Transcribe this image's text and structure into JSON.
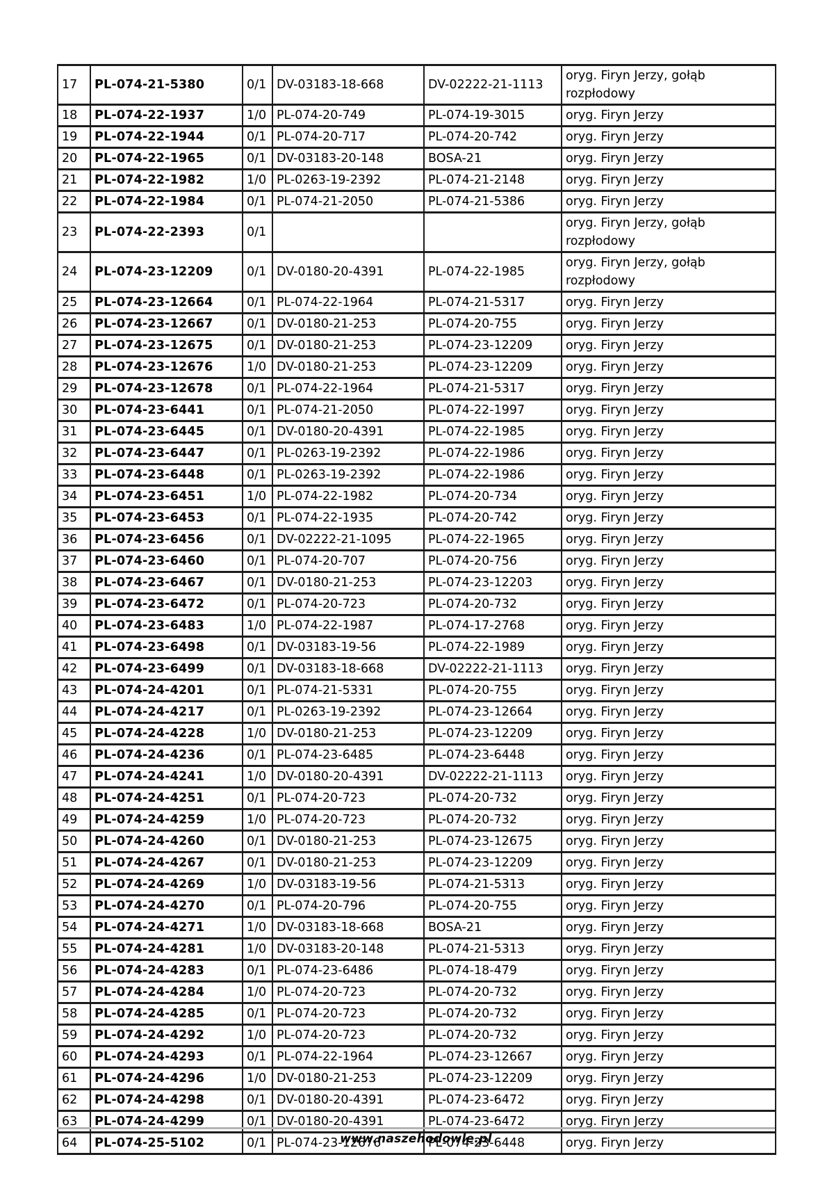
{
  "colors": {
    "text": "#000000",
    "table_border": "#1c1c1c",
    "footer_rule": "#b4b4b4",
    "background": "#ffffff"
  },
  "footer": {
    "website": "www.naszehodowle.pl"
  },
  "table": {
    "rows": [
      {
        "no": "17",
        "ring": "PL-074-21-5380",
        "sex": "0/1",
        "father": "DV-03183-18-668",
        "mother": "DV-02222-21-1113",
        "remarks": "oryg. Firyn Jerzy, gołąb rozpłodowy"
      },
      {
        "no": "18",
        "ring": "PL-074-22-1937",
        "sex": "1/0",
        "father": "PL-074-20-749",
        "mother": "PL-074-19-3015",
        "remarks": "oryg. Firyn Jerzy"
      },
      {
        "no": "19",
        "ring": "PL-074-22-1944",
        "sex": "0/1",
        "father": "PL-074-20-717",
        "mother": "PL-074-20-742",
        "remarks": "oryg. Firyn Jerzy"
      },
      {
        "no": "20",
        "ring": "PL-074-22-1965",
        "sex": "0/1",
        "father": "DV-03183-20-148",
        "mother": "BOSA-21",
        "remarks": "oryg. Firyn Jerzy"
      },
      {
        "no": "21",
        "ring": "PL-074-22-1982",
        "sex": "1/0",
        "father": "PL-0263-19-2392",
        "mother": "PL-074-21-2148",
        "remarks": "oryg. Firyn Jerzy"
      },
      {
        "no": "22",
        "ring": "PL-074-22-1984",
        "sex": "0/1",
        "father": "PL-074-21-2050",
        "mother": "PL-074-21-5386",
        "remarks": "oryg. Firyn Jerzy"
      },
      {
        "no": "23",
        "ring": "PL-074-22-2393",
        "sex": "0/1",
        "father": "",
        "mother": "",
        "remarks": "oryg. Firyn Jerzy, gołąb rozpłodowy"
      },
      {
        "no": "24",
        "ring": "PL-074-23-12209",
        "sex": "0/1",
        "father": "DV-0180-20-4391",
        "mother": "PL-074-22-1985",
        "remarks": "oryg. Firyn Jerzy, gołąb rozpłodowy"
      },
      {
        "no": "25",
        "ring": "PL-074-23-12664",
        "sex": "0/1",
        "father": "PL-074-22-1964",
        "mother": "PL-074-21-5317",
        "remarks": "oryg. Firyn Jerzy"
      },
      {
        "no": "26",
        "ring": "PL-074-23-12667",
        "sex": "0/1",
        "father": "DV-0180-21-253",
        "mother": "PL-074-20-755",
        "remarks": "oryg. Firyn Jerzy"
      },
      {
        "no": "27",
        "ring": "PL-074-23-12675",
        "sex": "0/1",
        "father": "DV-0180-21-253",
        "mother": "PL-074-23-12209",
        "remarks": "oryg. Firyn Jerzy"
      },
      {
        "no": "28",
        "ring": "PL-074-23-12676",
        "sex": "1/0",
        "father": "DV-0180-21-253",
        "mother": "PL-074-23-12209",
        "remarks": "oryg. Firyn Jerzy"
      },
      {
        "no": "29",
        "ring": "PL-074-23-12678",
        "sex": "0/1",
        "father": "PL-074-22-1964",
        "mother": "PL-074-21-5317",
        "remarks": "oryg. Firyn Jerzy"
      },
      {
        "no": "30",
        "ring": "PL-074-23-6441",
        "sex": "0/1",
        "father": "PL-074-21-2050",
        "mother": "PL-074-22-1997",
        "remarks": "oryg. Firyn Jerzy"
      },
      {
        "no": "31",
        "ring": "PL-074-23-6445",
        "sex": "0/1",
        "father": "DV-0180-20-4391",
        "mother": "PL-074-22-1985",
        "remarks": "oryg. Firyn Jerzy"
      },
      {
        "no": "32",
        "ring": "PL-074-23-6447",
        "sex": "0/1",
        "father": "PL-0263-19-2392",
        "mother": "PL-074-22-1986",
        "remarks": "oryg. Firyn Jerzy"
      },
      {
        "no": "33",
        "ring": "PL-074-23-6448",
        "sex": "0/1",
        "father": "PL-0263-19-2392",
        "mother": "PL-074-22-1986",
        "remarks": "oryg. Firyn Jerzy"
      },
      {
        "no": "34",
        "ring": "PL-074-23-6451",
        "sex": "1/0",
        "father": "PL-074-22-1982",
        "mother": "PL-074-20-734",
        "remarks": "oryg. Firyn Jerzy"
      },
      {
        "no": "35",
        "ring": "PL-074-23-6453",
        "sex": "0/1",
        "father": "PL-074-22-1935",
        "mother": "PL-074-20-742",
        "remarks": "oryg. Firyn Jerzy"
      },
      {
        "no": "36",
        "ring": "PL-074-23-6456",
        "sex": "0/1",
        "father": "DV-02222-21-1095",
        "mother": "PL-074-22-1965",
        "remarks": "oryg. Firyn Jerzy"
      },
      {
        "no": "37",
        "ring": "PL-074-23-6460",
        "sex": "0/1",
        "father": "PL-074-20-707",
        "mother": "PL-074-20-756",
        "remarks": "oryg. Firyn Jerzy"
      },
      {
        "no": "38",
        "ring": "PL-074-23-6467",
        "sex": "0/1",
        "father": "DV-0180-21-253",
        "mother": "PL-074-23-12203",
        "remarks": "oryg. Firyn Jerzy"
      },
      {
        "no": "39",
        "ring": "PL-074-23-6472",
        "sex": "0/1",
        "father": "PL-074-20-723",
        "mother": "PL-074-20-732",
        "remarks": "oryg. Firyn Jerzy"
      },
      {
        "no": "40",
        "ring": "PL-074-23-6483",
        "sex": "1/0",
        "father": "PL-074-22-1987",
        "mother": "PL-074-17-2768",
        "remarks": "oryg. Firyn Jerzy"
      },
      {
        "no": "41",
        "ring": "PL-074-23-6498",
        "sex": "0/1",
        "father": "DV-03183-19-56",
        "mother": "PL-074-22-1989",
        "remarks": "oryg. Firyn Jerzy"
      },
      {
        "no": "42",
        "ring": "PL-074-23-6499",
        "sex": "0/1",
        "father": "DV-03183-18-668",
        "mother": "DV-02222-21-1113",
        "remarks": "oryg. Firyn Jerzy"
      },
      {
        "no": "43",
        "ring": "PL-074-24-4201",
        "sex": "0/1",
        "father": "PL-074-21-5331",
        "mother": "PL-074-20-755",
        "remarks": "oryg. Firyn Jerzy"
      },
      {
        "no": "44",
        "ring": "PL-074-24-4217",
        "sex": "0/1",
        "father": "PL-0263-19-2392",
        "mother": "PL-074-23-12664",
        "remarks": "oryg. Firyn Jerzy"
      },
      {
        "no": "45",
        "ring": "PL-074-24-4228",
        "sex": "1/0",
        "father": "DV-0180-21-253",
        "mother": "PL-074-23-12209",
        "remarks": "oryg. Firyn Jerzy"
      },
      {
        "no": "46",
        "ring": "PL-074-24-4236",
        "sex": "0/1",
        "father": "PL-074-23-6485",
        "mother": "PL-074-23-6448",
        "remarks": "oryg. Firyn Jerzy"
      },
      {
        "no": "47",
        "ring": "PL-074-24-4241",
        "sex": "1/0",
        "father": "DV-0180-20-4391",
        "mother": "DV-02222-21-1113",
        "remarks": "oryg. Firyn Jerzy"
      },
      {
        "no": "48",
        "ring": "PL-074-24-4251",
        "sex": "0/1",
        "father": "PL-074-20-723",
        "mother": "PL-074-20-732",
        "remarks": "oryg. Firyn Jerzy"
      },
      {
        "no": "49",
        "ring": "PL-074-24-4259",
        "sex": "1/0",
        "father": "PL-074-20-723",
        "mother": "PL-074-20-732",
        "remarks": "oryg. Firyn Jerzy"
      },
      {
        "no": "50",
        "ring": "PL-074-24-4260",
        "sex": "0/1",
        "father": "DV-0180-21-253",
        "mother": "PL-074-23-12675",
        "remarks": "oryg. Firyn Jerzy"
      },
      {
        "no": "51",
        "ring": "PL-074-24-4267",
        "sex": "0/1",
        "father": "DV-0180-21-253",
        "mother": "PL-074-23-12209",
        "remarks": "oryg. Firyn Jerzy"
      },
      {
        "no": "52",
        "ring": "PL-074-24-4269",
        "sex": "1/0",
        "father": "DV-03183-19-56",
        "mother": "PL-074-21-5313",
        "remarks": "oryg. Firyn Jerzy"
      },
      {
        "no": "53",
        "ring": "PL-074-24-4270",
        "sex": "0/1",
        "father": "PL-074-20-796",
        "mother": "PL-074-20-755",
        "remarks": "oryg. Firyn Jerzy"
      },
      {
        "no": "54",
        "ring": "PL-074-24-4271",
        "sex": "1/0",
        "father": "DV-03183-18-668",
        "mother": "BOSA-21",
        "remarks": "oryg. Firyn Jerzy"
      },
      {
        "no": "55",
        "ring": "PL-074-24-4281",
        "sex": "1/0",
        "father": "DV-03183-20-148",
        "mother": "PL-074-21-5313",
        "remarks": "oryg. Firyn Jerzy"
      },
      {
        "no": "56",
        "ring": "PL-074-24-4283",
        "sex": "0/1",
        "father": "PL-074-23-6486",
        "mother": "PL-074-18-479",
        "remarks": "oryg. Firyn Jerzy"
      },
      {
        "no": "57",
        "ring": "PL-074-24-4284",
        "sex": "1/0",
        "father": "PL-074-20-723",
        "mother": "PL-074-20-732",
        "remarks": "oryg. Firyn Jerzy"
      },
      {
        "no": "58",
        "ring": "PL-074-24-4285",
        "sex": "0/1",
        "father": "PL-074-20-723",
        "mother": "PL-074-20-732",
        "remarks": "oryg. Firyn Jerzy"
      },
      {
        "no": "59",
        "ring": "PL-074-24-4292",
        "sex": "1/0",
        "father": "PL-074-20-723",
        "mother": "PL-074-20-732",
        "remarks": "oryg. Firyn Jerzy"
      },
      {
        "no": "60",
        "ring": "PL-074-24-4293",
        "sex": "0/1",
        "father": "PL-074-22-1964",
        "mother": "PL-074-23-12667",
        "remarks": "oryg. Firyn Jerzy"
      },
      {
        "no": "61",
        "ring": "PL-074-24-4296",
        "sex": "1/0",
        "father": "DV-0180-21-253",
        "mother": "PL-074-23-12209",
        "remarks": "oryg. Firyn Jerzy"
      },
      {
        "no": "62",
        "ring": "PL-074-24-4298",
        "sex": "0/1",
        "father": "DV-0180-20-4391",
        "mother": "PL-074-23-6472",
        "remarks": "oryg. Firyn Jerzy"
      },
      {
        "no": "63",
        "ring": "PL-074-24-4299",
        "sex": "0/1",
        "father": "DV-0180-20-4391",
        "mother": "PL-074-23-6472",
        "remarks": "oryg. Firyn Jerzy"
      },
      {
        "no": "64",
        "ring": "PL-074-25-5102",
        "sex": "0/1",
        "father": "PL-074-23-12676",
        "mother": "PL-074-23-6448",
        "remarks": "oryg. Firyn Jerzy"
      }
    ]
  }
}
